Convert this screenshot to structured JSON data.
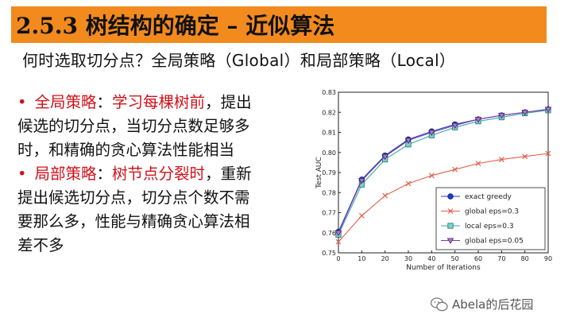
{
  "slide": {
    "title": "2.5.3 树结构的确定 – 近似算法",
    "question": "何时选取切分点？全局策略（Global）和局部策略（Local）",
    "bullet1": {
      "marker": "•",
      "term": "全局策略",
      "colon": "：",
      "highlight": "学习每棵树前",
      "line1_rest": "，提出",
      "line2": "候选的切分点，当切分点数足够多",
      "line3": "时，和精确的贪心算法性能相当"
    },
    "bullet2": {
      "marker": "•",
      "term": "局部策略",
      "colon": "：",
      "highlight": "树节点分裂时",
      "line1_rest": "，重新",
      "line2": "提出候选切分点，切分点个数不需",
      "line3": "要那么多，性能与精确贪心算法相",
      "line4": "差不多"
    },
    "watermark": "Abela的后花园"
  },
  "chart_data": {
    "type": "line",
    "xlabel": "Number of Iterations",
    "ylabel": "Test AUC",
    "xlim": [
      0,
      90
    ],
    "ylim": [
      0.75,
      0.83
    ],
    "xticks": [
      0,
      10,
      20,
      30,
      40,
      50,
      60,
      70,
      80,
      90
    ],
    "yticks": [
      0.75,
      0.76,
      0.77,
      0.78,
      0.79,
      0.8,
      0.81,
      0.82,
      0.83
    ],
    "x": [
      0,
      10,
      20,
      30,
      40,
      50,
      60,
      70,
      80,
      90
    ],
    "legend_position": "bottom-right",
    "series": [
      {
        "name": "exact greedy",
        "marker": "circle",
        "color": "#1f3fcf",
        "values": [
          0.7605,
          0.7865,
          0.7985,
          0.8065,
          0.8105,
          0.814,
          0.8165,
          0.8185,
          0.82,
          0.8215
        ]
      },
      {
        "name": "global eps=0.3",
        "marker": "x",
        "color": "#e0604a",
        "values": [
          0.7555,
          0.7685,
          0.7785,
          0.7845,
          0.7885,
          0.7915,
          0.7945,
          0.7965,
          0.798,
          0.7995
        ]
      },
      {
        "name": "local eps=0.3",
        "marker": "square",
        "color": "#3aa6a6",
        "values": [
          0.759,
          0.784,
          0.7965,
          0.804,
          0.8085,
          0.8125,
          0.8155,
          0.8175,
          0.8195,
          0.821
        ]
      },
      {
        "name": "global eps=0.05",
        "marker": "triangle",
        "color": "#7a3f9f",
        "values": [
          0.76,
          0.786,
          0.798,
          0.806,
          0.81,
          0.8135,
          0.8165,
          0.8185,
          0.82,
          0.8215
        ]
      }
    ]
  }
}
